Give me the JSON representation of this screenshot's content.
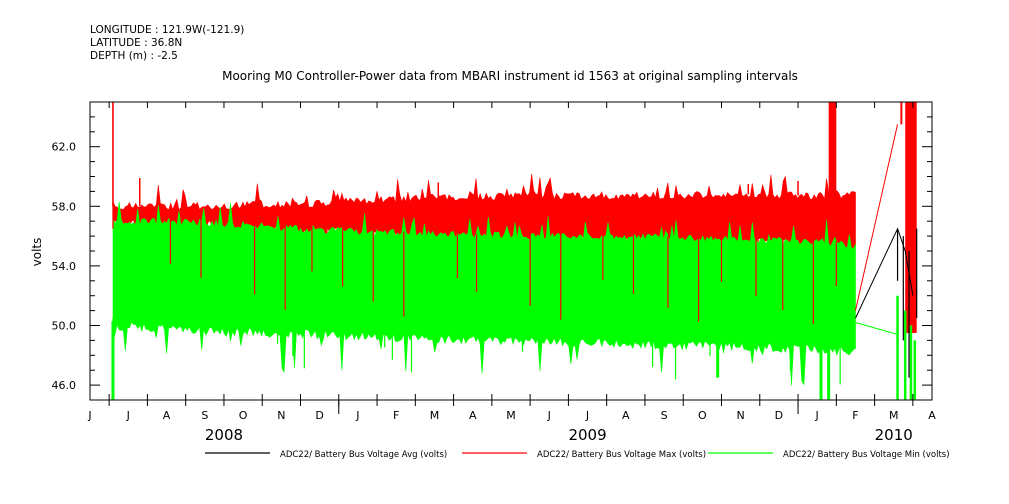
{
  "header": {
    "longitude": "LONGITUDE : 121.9W(-121.9)",
    "latitude": "LATITUDE : 36.8N",
    "depth": "DEPTH (m) : -2.5"
  },
  "chart_data": {
    "type": "line",
    "title": "Mooring M0 Controller-Power data from MBARI instrument id 1563 at original sampling intervals",
    "ylabel": "volts",
    "xlabel": "",
    "ylim": [
      45.0,
      65.0
    ],
    "yticks": [
      46.0,
      50.0,
      54.0,
      58.0,
      62.0
    ],
    "ytick_labels": [
      "46.0",
      "50.0",
      "54.0",
      "58.0",
      "62.0"
    ],
    "xlim": [
      0,
      22
    ],
    "month_labels": [
      "J",
      "J",
      "A",
      "S",
      "O",
      "N",
      "D",
      "J",
      "F",
      "M",
      "A",
      "M",
      "J",
      "J",
      "A",
      "S",
      "O",
      "N",
      "D",
      "J",
      "F",
      "M",
      "A"
    ],
    "year_labels": [
      {
        "label": "2008",
        "pos": 3.5
      },
      {
        "label": "2009",
        "pos": 13.0
      },
      {
        "label": "2010",
        "pos": 21.0
      }
    ],
    "grid": false,
    "legend_position": "bottom",
    "series": [
      {
        "name": "ADC22/ Battery Bus Voltage Avg (volts)",
        "color": "#000000",
        "points": [
          [
            20.0,
            50.5
          ],
          [
            21.1,
            56.5
          ],
          [
            21.3,
            55.0
          ],
          [
            21.5,
            52.0
          ]
        ]
      },
      {
        "name": "ADC22/ Battery Bus Voltage Max (volts)",
        "color": "#ff0000",
        "upper": [
          [
            0.6,
            58.0
          ],
          [
            3.0,
            58.0
          ],
          [
            6.0,
            58.2
          ],
          [
            9.0,
            58.6
          ],
          [
            12.0,
            58.7
          ],
          [
            15.0,
            58.7
          ],
          [
            17.0,
            58.8
          ],
          [
            19.0,
            58.7
          ],
          [
            20.0,
            58.8
          ]
        ],
        "lower": [
          [
            0.6,
            57.2
          ],
          [
            3.0,
            57.1
          ],
          [
            6.0,
            56.6
          ],
          [
            9.0,
            56.2
          ],
          [
            12.0,
            56.1
          ],
          [
            15.0,
            56.0
          ],
          [
            17.0,
            55.9
          ],
          [
            19.0,
            55.8
          ],
          [
            20.0,
            55.5
          ]
        ],
        "spikes": [
          [
            0.6,
            65.0
          ],
          [
            1.3,
            59.9
          ],
          [
            9.1,
            59.6
          ],
          [
            17.2,
            59.5
          ],
          [
            18.5,
            59.7
          ]
        ]
      },
      {
        "name": "ADC22/ Battery Bus Voltage Min (volts)",
        "color": "#00ff00",
        "upper": [
          [
            0.6,
            57.0
          ],
          [
            3.0,
            56.9
          ],
          [
            6.0,
            56.4
          ],
          [
            9.0,
            56.1
          ],
          [
            12.0,
            56.0
          ],
          [
            15.0,
            55.9
          ],
          [
            17.0,
            55.8
          ],
          [
            19.0,
            55.6
          ],
          [
            20.0,
            55.3
          ]
        ],
        "lower": [
          [
            0.6,
            50.3
          ],
          [
            3.0,
            49.9
          ],
          [
            6.0,
            49.7
          ],
          [
            9.0,
            49.4
          ],
          [
            12.0,
            49.2
          ],
          [
            15.0,
            49.0
          ],
          [
            17.0,
            48.9
          ],
          [
            19.0,
            48.7
          ],
          [
            20.0,
            48.6
          ]
        ],
        "dips": [
          [
            0.6,
            45.0
          ],
          [
            16.4,
            46.5
          ],
          [
            19.1,
            45.0
          ],
          [
            19.3,
            45.0
          ]
        ]
      }
    ]
  }
}
